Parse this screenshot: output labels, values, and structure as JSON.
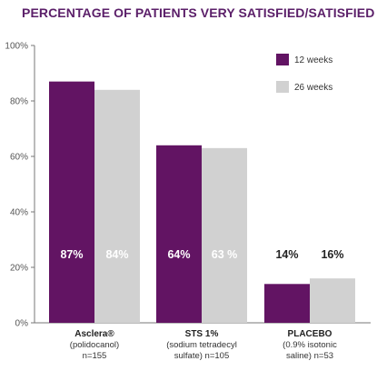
{
  "title": "PERCENTAGE OF PATIENTS VERY SATISFIED/SATISFIED",
  "chart_data": {
    "type": "bar",
    "title": "PERCENTAGE OF PATIENTS VERY SATISFIED/SATISFIED",
    "categories": [
      {
        "name": "Asclera®",
        "line2": "(polidocanol)",
        "line3": "n=155"
      },
      {
        "name": "STS 1%",
        "line2": "(sodium tetradecyl",
        "line3": "sulfate) n=105"
      },
      {
        "name": "PLACEBO",
        "line2": "(0.9% isotonic",
        "line3": "saline) n=53"
      }
    ],
    "series": [
      {
        "name": "12 weeks",
        "color": "#621463",
        "values": [
          87,
          64,
          14
        ],
        "labels": [
          "87%",
          "64%",
          "14%"
        ]
      },
      {
        "name": "26 weeks",
        "color": "#d1d1d1",
        "values": [
          84,
          63,
          16
        ],
        "labels": [
          "84%",
          "63 %",
          "16%"
        ]
      }
    ],
    "ylim": [
      0,
      100
    ],
    "yticks": [
      0,
      20,
      40,
      60,
      80,
      100
    ],
    "ytick_labels": [
      "0%",
      "20%",
      "40%",
      "60%",
      "80%",
      "100%"
    ],
    "grid": false,
    "legend": "top-right"
  }
}
